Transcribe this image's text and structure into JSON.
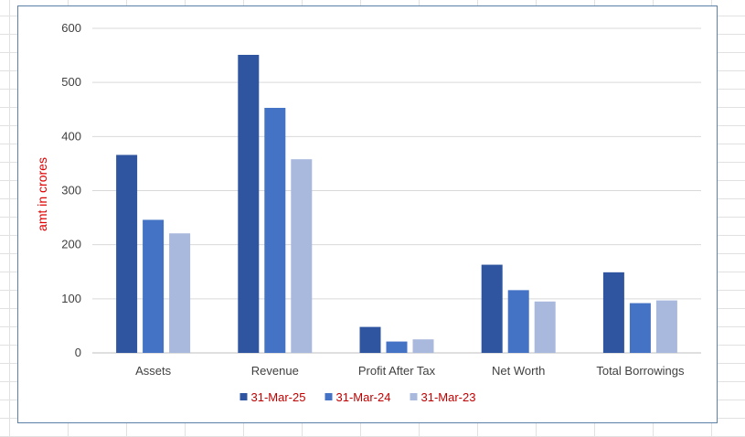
{
  "chart_data": {
    "type": "bar",
    "title": "",
    "xlabel": "",
    "ylabel": "amt in crores",
    "ylabel_color": "#e00000",
    "ylim": [
      0,
      600
    ],
    "yticks": [
      0,
      100,
      200,
      300,
      400,
      500,
      600
    ],
    "grid": true,
    "legend_position": "bottom",
    "legend_text_color": "#c00000",
    "categories": [
      "Assets",
      "Revenue",
      "Profit After Tax",
      "Net Worth",
      "Total Borrowings"
    ],
    "series": [
      {
        "name": "31-Mar-25",
        "color": "#2f55a0",
        "values": [
          366,
          551,
          48,
          163,
          149
        ]
      },
      {
        "name": "31-Mar-24",
        "color": "#4472c4",
        "values": [
          246,
          453,
          21,
          116,
          92
        ]
      },
      {
        "name": "31-Mar-23",
        "color": "#a9b8dd",
        "values": [
          221,
          358,
          25,
          95,
          97
        ]
      }
    ]
  }
}
